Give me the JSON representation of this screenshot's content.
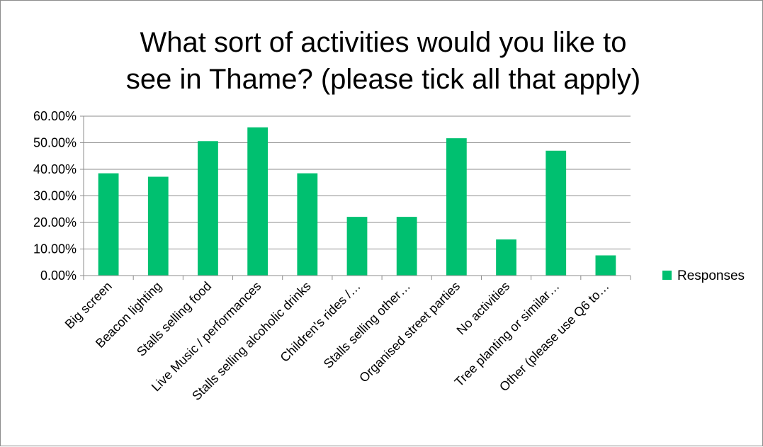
{
  "chart_data": {
    "type": "bar",
    "title_lines": [
      "What sort of activities would you like to",
      "see in Thame? (please tick all that apply)"
    ],
    "categories": [
      "Big screen",
      "Beacon lighting",
      "Stalls selling food",
      "Live Music / performances",
      "Stalls selling alcoholic drinks",
      "Children's rides /…",
      "Stalls selling other…",
      "Organised street parties",
      "No activities",
      "Tree planting or similar…",
      "Other (please use Q6 to…"
    ],
    "series": [
      {
        "name": "Responses",
        "color": "#00c070",
        "values": [
          38.5,
          37.2,
          50.6,
          55.8,
          38.5,
          22.1,
          22.1,
          51.7,
          13.6,
          47.0,
          7.6
        ]
      }
    ],
    "yticks": [
      "0.00%",
      "10.00%",
      "20.00%",
      "30.00%",
      "40.00%",
      "50.00%",
      "60.00%"
    ],
    "ylim": [
      0,
      60
    ],
    "ystep": 10,
    "grid": true,
    "legend_position": "right"
  }
}
